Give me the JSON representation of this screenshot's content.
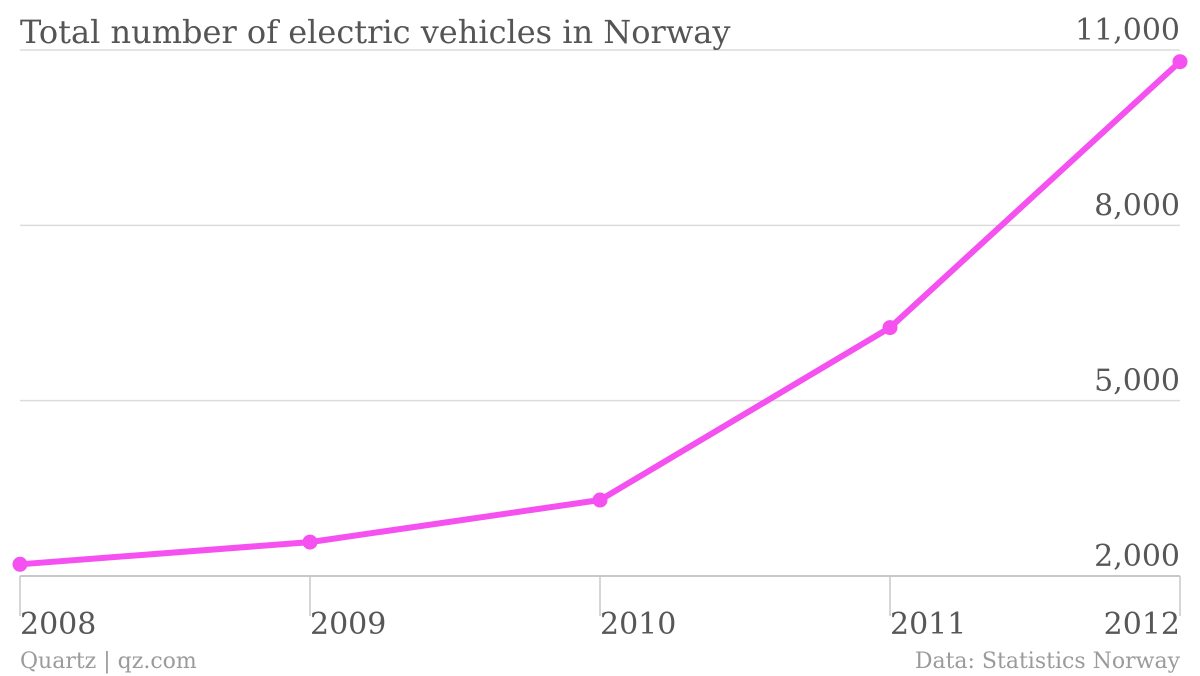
{
  "chart_data": {
    "type": "line",
    "title": "Total number of electric vehicles in Norway",
    "xlabel": "",
    "ylabel": "",
    "x": [
      "2008",
      "2009",
      "2010",
      "2011",
      "2012"
    ],
    "categories": [
      "2008",
      "2009",
      "2010",
      "2011",
      "2012"
    ],
    "series": [
      {
        "values": [
          2200,
          2580,
          3300,
          6250,
          10800
        ]
      }
    ],
    "ylim": [
      2000,
      11000
    ],
    "yticks": [
      "2,000",
      "5,000",
      "8,000",
      "11,000"
    ],
    "ytick_values": [
      2000,
      5000,
      8000,
      11000
    ],
    "grid": true,
    "y_axis_side": "right",
    "series_color": "#f550f0"
  },
  "footer": {
    "source_left": "Quartz | qz.com",
    "source_right": "Data: Statistics Norway"
  }
}
